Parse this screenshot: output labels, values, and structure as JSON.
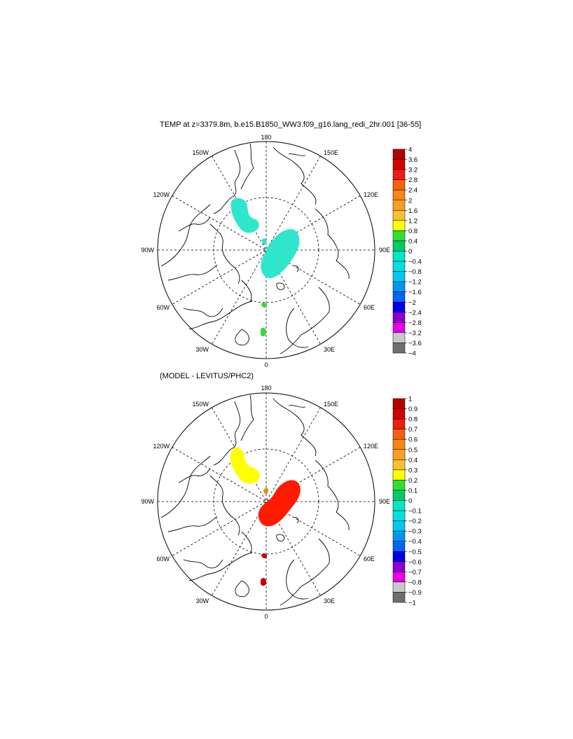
{
  "panels": [
    {
      "title": "TEMP at z=3379.8m, b.e15.B1850_WW3.f09_g16.lang_redi_2hr.001 [36-55]",
      "lon_labels": {
        "top": "180",
        "bottom": "0",
        "left": "90W",
        "right": "90E",
        "ul1": "150W",
        "ul2": "120W",
        "ur1": "150E",
        "ur2": "120E",
        "ll1": "60W",
        "ll2": "30W",
        "lr1": "60E",
        "lr2": "30E"
      },
      "colorbar": {
        "labels": [
          "4",
          "3.6",
          "3.2",
          "2.8",
          "2.4",
          "2",
          "1.6",
          "1.2",
          "0.8",
          "0.4",
          "0",
          "−0.4",
          "−0.8",
          "−1.2",
          "−1.6",
          "−2",
          "−2.4",
          "−2.8",
          "−3.2",
          "−3.6",
          "−4"
        ],
        "colors": [
          "#b40000",
          "#d30000",
          "#ee1c0f",
          "#f2610f",
          "#f2871a",
          "#f4a020",
          "#f7c030",
          "#ffff00",
          "#30e030",
          "#00cc66",
          "#00e6c8",
          "#00e0e0",
          "#00c8f0",
          "#0096f0",
          "#0064f0",
          "#0000e6",
          "#8c00c8",
          "#e600e6",
          "#c8c8c8",
          "#6e6e6e"
        ]
      },
      "patches": [
        {
          "name": "beaufort-patch",
          "color": "#2ee6cc"
        },
        {
          "name": "eurasian-basin-patch",
          "color": "#2ee6cc"
        },
        {
          "name": "fram-strait-patch",
          "color": "#30dd30"
        },
        {
          "name": "norwegian-sea-patch",
          "color": "#30dd30"
        }
      ]
    },
    {
      "title": "(MODEL - LEVITUS/PHC2)",
      "lon_labels": {
        "top": "180",
        "bottom": "0",
        "left": "90W",
        "right": "90E",
        "ul1": "150W",
        "ul2": "120W",
        "ur1": "150E",
        "ur2": "120E",
        "ll1": "60W",
        "ll2": "30W",
        "lr1": "60E",
        "lr2": "30E"
      },
      "colorbar": {
        "labels": [
          "1",
          "0.9",
          "0.8",
          "0.7",
          "0.6",
          "0.5",
          "0.4",
          "0.3",
          "0.2",
          "0.1",
          "0",
          "−0.1",
          "−0.2",
          "−0.3",
          "−0.4",
          "−0.5",
          "−0.6",
          "−0.7",
          "−0.8",
          "−0.9",
          "−1"
        ],
        "colors": [
          "#b40000",
          "#d30000",
          "#ee1c0f",
          "#f2610f",
          "#f2871a",
          "#f4a020",
          "#f7c030",
          "#ffff00",
          "#30e030",
          "#00cc66",
          "#00e6c8",
          "#00e0e0",
          "#00c8f0",
          "#0096f0",
          "#0064f0",
          "#0000e6",
          "#8c00c8",
          "#e600e6",
          "#c8c8c8",
          "#6e6e6e"
        ]
      },
      "patches": [
        {
          "name": "beaufort-patch",
          "color": "#ffff00"
        },
        {
          "name": "eurasian-basin-patch",
          "color": "#ff1a00"
        },
        {
          "name": "lomonosov-patch",
          "color": "#f2871a"
        },
        {
          "name": "fram-strait-patch",
          "color": "#cc0000"
        },
        {
          "name": "norwegian-sea-patch",
          "color": "#cc0000"
        }
      ]
    }
  ]
}
